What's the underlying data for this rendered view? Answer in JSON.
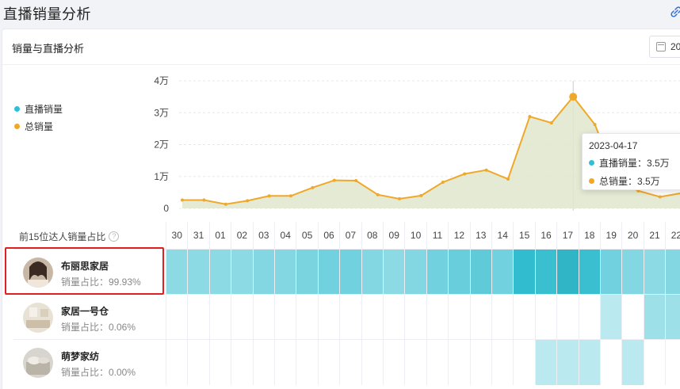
{
  "page": {
    "title": "直播销量分析"
  },
  "card": {
    "title": "销量与直播分析",
    "date_button": "20"
  },
  "legend": [
    {
      "label": "直播销量",
      "color": "#2fc0d6"
    },
    {
      "label": "总销量",
      "color": "#f0a829"
    }
  ],
  "tooltip": {
    "date": "2023-04-17",
    "rows": [
      {
        "label": "直播销量：3.5万",
        "color": "#2fc0d6"
      },
      {
        "label": "总销量：3.5万",
        "color": "#f0a829"
      }
    ]
  },
  "chart_data": {
    "type": "area",
    "ylabel": "",
    "yticks": [
      "4万",
      "3万",
      "2万",
      "1万",
      "0"
    ],
    "ylim": [
      0,
      40000
    ],
    "x": [
      "30",
      "31",
      "01",
      "02",
      "03",
      "04",
      "05",
      "06",
      "07",
      "08",
      "09",
      "10",
      "11",
      "12",
      "13",
      "14",
      "15",
      "16",
      "17",
      "18",
      "19",
      "20",
      "21",
      "22"
    ],
    "series": [
      {
        "name": "总销量",
        "color": "#f0a829",
        "values": [
          2600,
          2600,
          1300,
          2400,
          3900,
          3900,
          6500,
          8800,
          8700,
          4300,
          3000,
          4000,
          8200,
          10800,
          12000,
          9200,
          28800,
          26800,
          35000,
          26300,
          9000,
          5500,
          3600,
          4800
        ]
      },
      {
        "name": "直播销量",
        "color": "#2fc0d6",
        "values": [
          2600,
          2600,
          1300,
          2400,
          3900,
          3900,
          6500,
          8800,
          8700,
          4300,
          3000,
          4000,
          8200,
          10800,
          12000,
          9200,
          28800,
          26800,
          35000,
          26300,
          9000,
          5500,
          3600,
          4800
        ]
      }
    ],
    "grid": true
  },
  "grid": {
    "header_label": "前15位达人销量占比",
    "help_icon": "question-circle-icon",
    "days": [
      "30",
      "31",
      "01",
      "02",
      "03",
      "04",
      "05",
      "06",
      "07",
      "08",
      "09",
      "10",
      "11",
      "12",
      "13",
      "14",
      "15",
      "16",
      "17",
      "18",
      "19",
      "20",
      "21",
      "22"
    ],
    "rows": [
      {
        "name": "布丽思家居",
        "share": "销量占比：99.93%",
        "avatar": "avatar-woman-icon",
        "intensity": [
          0.45,
          0.45,
          0.45,
          0.45,
          0.5,
          0.5,
          0.55,
          0.6,
          0.6,
          0.5,
          0.45,
          0.5,
          0.6,
          0.65,
          0.7,
          0.6,
          0.95,
          0.9,
          1.0,
          0.9,
          0.6,
          0.5,
          0.45,
          0.5
        ]
      },
      {
        "name": "家居一号仓",
        "share": "销量占比：0.06%",
        "avatar": "avatar-room-icon",
        "intensity": [
          0,
          0,
          0,
          0,
          0,
          0,
          0,
          0,
          0,
          0,
          0,
          0,
          0,
          0,
          0,
          0,
          0,
          0,
          0,
          0,
          0.2,
          0,
          0.35,
          0.35
        ]
      },
      {
        "name": "萌梦家纺",
        "share": "销量占比：0.00%",
        "avatar": "avatar-bedding-icon",
        "intensity": [
          0,
          0,
          0,
          0,
          0,
          0,
          0,
          0,
          0,
          0,
          0,
          0,
          0,
          0,
          0,
          0,
          0,
          0.2,
          0.2,
          0.2,
          0,
          0.2,
          0,
          0
        ]
      }
    ]
  }
}
